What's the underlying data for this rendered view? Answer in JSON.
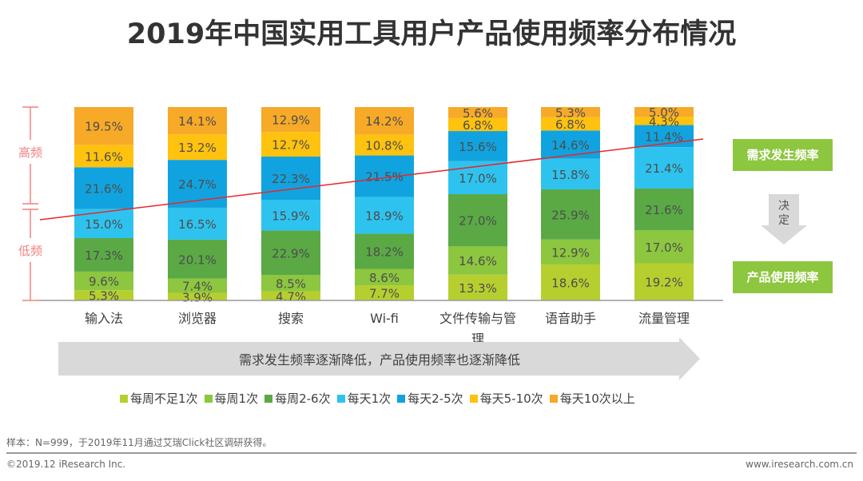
{
  "title": "2019年中国实用工具用户产品使用频率分布情况",
  "side_labels": {
    "high": "高频",
    "low": "低频"
  },
  "right_panel": {
    "top_box": "需求发生频率",
    "arrow_text": "决定",
    "bottom_box": "产品使用频率"
  },
  "arrow_caption": "需求发生频率逐渐降低，产品使用频率也逐渐降低",
  "footnote": "样本：N=999，于2019年11月通过艾瑞Click社区调研获得。",
  "copyright": "©2019.12 iResearch Inc.",
  "url": "www.iresearch.com.cn",
  "chart_data": {
    "type": "bar",
    "stacked": true,
    "unit": "%",
    "categories": [
      "输入法",
      "浏览器",
      "搜索",
      "Wi-fi",
      "文件传输与管理",
      "语音助手",
      "流量管理"
    ],
    "series": [
      {
        "name": "每周不足1次",
        "color": "#b6cf2f",
        "values": [
          5.3,
          3.9,
          4.7,
          7.7,
          13.3,
          18.6,
          19.2
        ]
      },
      {
        "name": "每周1次",
        "color": "#8dc63f",
        "values": [
          9.6,
          7.4,
          8.5,
          8.6,
          14.6,
          12.9,
          17.0
        ]
      },
      {
        "name": "每周2-6次",
        "color": "#5aa945",
        "values": [
          17.3,
          20.1,
          22.9,
          18.2,
          27.0,
          25.9,
          21.6
        ]
      },
      {
        "name": "每天1次",
        "color": "#2ec3ef",
        "values": [
          15.0,
          16.5,
          15.9,
          18.9,
          17.0,
          15.8,
          21.4
        ]
      },
      {
        "name": "每天2-5次",
        "color": "#11a3df",
        "values": [
          21.6,
          24.7,
          22.3,
          21.5,
          15.6,
          14.6,
          11.4
        ]
      },
      {
        "name": "每天5-10次",
        "color": "#ffc20e",
        "values": [
          11.6,
          13.2,
          12.7,
          10.8,
          6.8,
          6.8,
          4.3
        ]
      },
      {
        "name": "每天10次以上",
        "color": "#f7a928",
        "values": [
          19.5,
          14.1,
          12.9,
          14.2,
          5.6,
          5.3,
          5.0
        ]
      }
    ],
    "ylim": [
      0,
      100
    ],
    "legend": "bottom",
    "trend_line_color": "#e8262c"
  }
}
